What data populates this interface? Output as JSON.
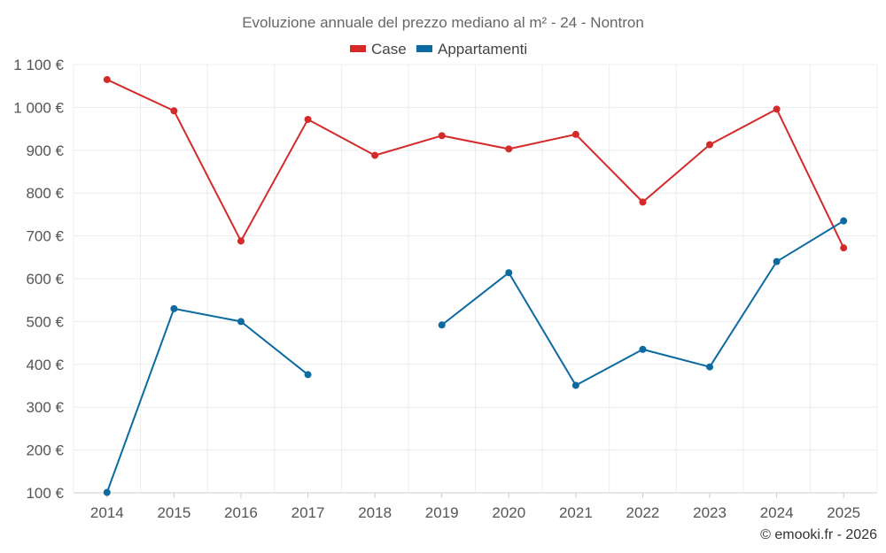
{
  "chart_data": {
    "type": "line",
    "title": "Evoluzione annuale del prezzo mediano al m² - 24 - Nontron",
    "categories": [
      "2014",
      "2015",
      "2016",
      "2017",
      "2018",
      "2019",
      "2020",
      "2021",
      "2022",
      "2023",
      "2024",
      "2025"
    ],
    "series": [
      {
        "name": "Case",
        "color": "#d42a2a",
        "values": [
          1065,
          992,
          688,
          972,
          888,
          934,
          903,
          937,
          779,
          913,
          996,
          672
        ]
      },
      {
        "name": "Appartamenti",
        "color": "#0b6aa0",
        "values": [
          101,
          530,
          500,
          376,
          null,
          492,
          614,
          351,
          435,
          394,
          640,
          735
        ]
      }
    ],
    "ylim": [
      100,
      1100
    ],
    "yticks": [
      100,
      200,
      300,
      400,
      500,
      600,
      700,
      800,
      900,
      1000,
      1100
    ],
    "ytick_labels": [
      "100 €",
      "200 €",
      "300 €",
      "400 €",
      "500 €",
      "600 €",
      "700 €",
      "800 €",
      "900 €",
      "1 000 €",
      "1 100 €"
    ],
    "xlabel": "",
    "ylabel": "",
    "grid": true,
    "legend_position": "top-center"
  },
  "credit": "© emooki.fr - 2026"
}
